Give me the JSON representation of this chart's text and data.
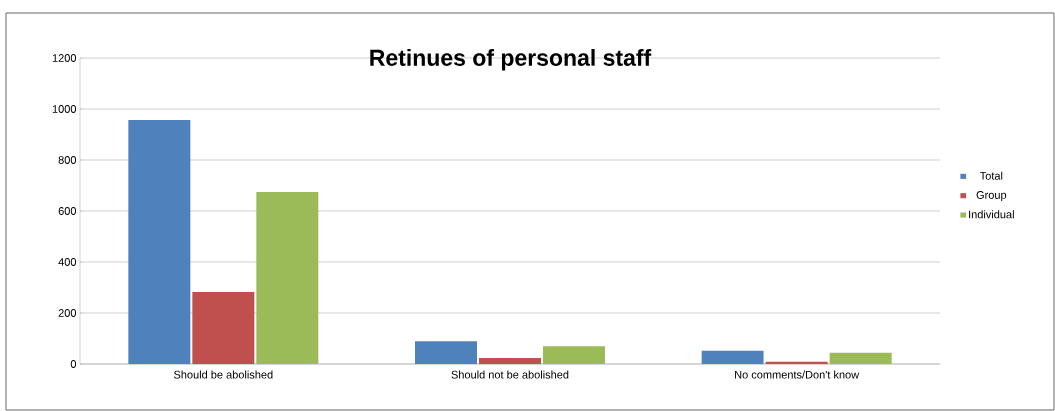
{
  "chart_data": {
    "type": "bar",
    "title": "Retinues of personal staff",
    "categories": [
      "Should be abolished",
      "Should not be abolished",
      "No comments/Don't know"
    ],
    "series": [
      {
        "name": "Total",
        "color": "#4f81bd",
        "values": [
          957,
          89,
          52
        ]
      },
      {
        "name": "Group",
        "color": "#c0504d",
        "values": [
          282,
          23,
          9
        ]
      },
      {
        "name": "Individual",
        "color": "#9bbb59",
        "values": [
          674,
          70,
          44
        ]
      }
    ],
    "ylim": [
      0,
      1200
    ],
    "yticks": [
      0,
      200,
      400,
      600,
      800,
      1000,
      1200
    ],
    "grid": "y",
    "legend": "right"
  }
}
